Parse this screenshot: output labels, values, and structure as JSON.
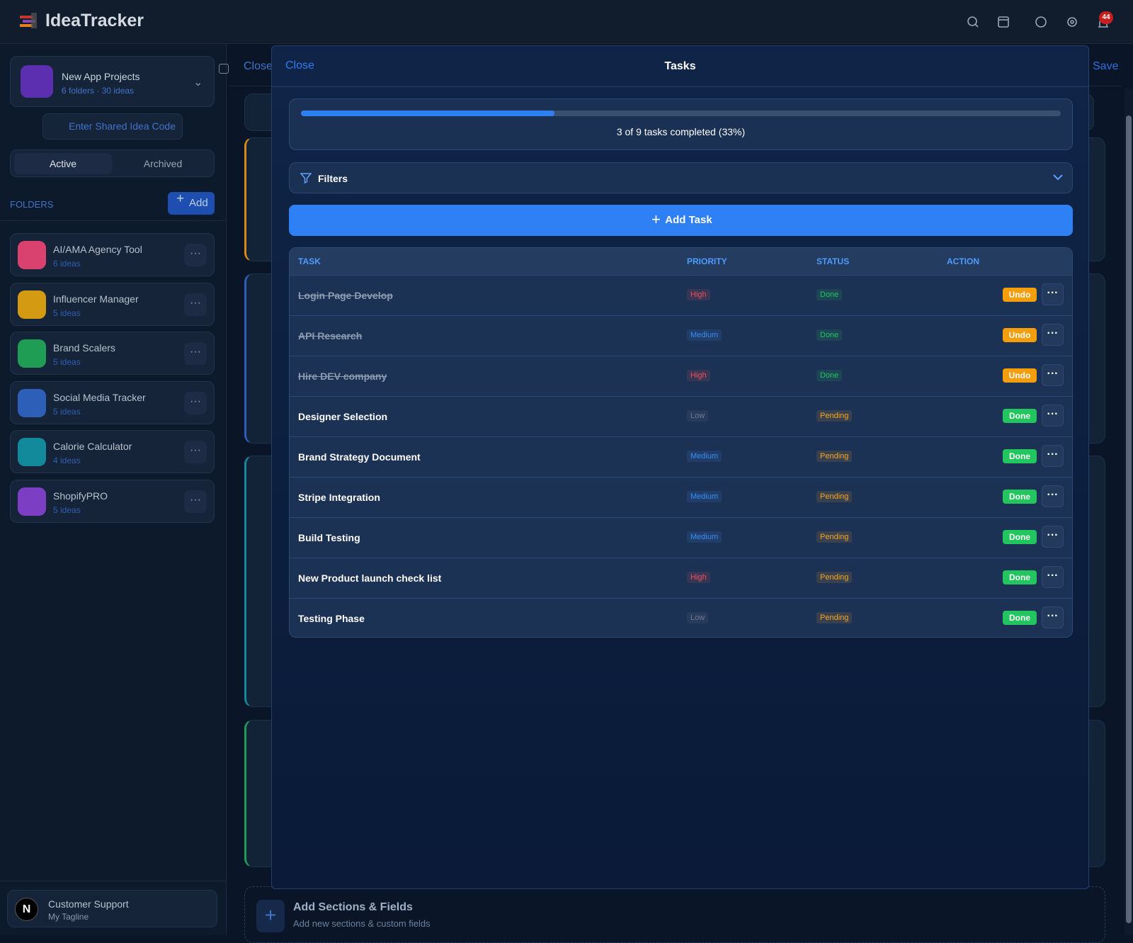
{
  "header": {
    "logo": "IdeaTracker",
    "notification_count": "44"
  },
  "sidebar": {
    "workspace": {
      "name": "New App Projects",
      "meta": "6 folders · 30 ideas"
    },
    "shared_code": "Enter Shared Idea Code",
    "tabs": [
      "Active",
      "Archived"
    ],
    "folders_label": "FOLDERS",
    "add": "Add",
    "folders": [
      {
        "name": "AI/AMA Agency Tool",
        "meta": "6 ideas",
        "color": "#d9416f"
      },
      {
        "name": "Influencer Manager",
        "meta": "5 ideas",
        "color": "#d39a12"
      },
      {
        "name": "Brand Scalers",
        "meta": "5 ideas",
        "color": "#1f9d55"
      },
      {
        "name": "Social Media Tracker",
        "meta": "5 ideas",
        "color": "#2d5fb8"
      },
      {
        "name": "Calorie Calculator",
        "meta": "4 ideas",
        "color": "#138a9c"
      },
      {
        "name": "ShopifyPRO",
        "meta": "5 ideas",
        "color": "#7c3fc4"
      }
    ],
    "footer": {
      "avatar": "N",
      "name": "Customer Support",
      "tagline": "My Tagline"
    }
  },
  "background": {
    "close": "Close",
    "save": "Save",
    "add_sections": {
      "title": "Add Sections & Fields",
      "subtitle": "Add new sections & custom fields"
    }
  },
  "modal": {
    "close": "Close",
    "title": "Tasks",
    "progress": {
      "completed": 3,
      "total": 9,
      "label": "3 of 9 tasks completed (33%)"
    },
    "filters": "Filters",
    "add_task": "Add Task",
    "columns": [
      "TASK",
      "PRIORITY",
      "STATUS",
      "ACTION"
    ],
    "colors": {
      "High": "#ef4f5a",
      "Medium": "#3b8cf0",
      "Low": "#6f7b8d",
      "Done": "#22c55e",
      "Pending": "#f5a524",
      "Undo": "#f59e0b"
    },
    "tasks": [
      {
        "name": "Login Page Develop",
        "priority": "High",
        "status": "Done",
        "action": "Undo",
        "strikethrough": true
      },
      {
        "name": "API Research",
        "priority": "Medium",
        "status": "Done",
        "action": "Undo",
        "strikethrough": true
      },
      {
        "name": "Hire DEV company",
        "priority": "High",
        "status": "Done",
        "action": "Undo",
        "strikethrough": true
      },
      {
        "name": "Designer Selection",
        "priority": "Low",
        "status": "Pending",
        "action": "Done",
        "strikethrough": false
      },
      {
        "name": "Brand Strategy Document",
        "priority": "Medium",
        "status": "Pending",
        "action": "Done",
        "strikethrough": false
      },
      {
        "name": "Stripe Integration",
        "priority": "Medium",
        "status": "Pending",
        "action": "Done",
        "strikethrough": false
      },
      {
        "name": "Build Testing",
        "priority": "Medium",
        "status": "Pending",
        "action": "Done",
        "strikethrough": false
      },
      {
        "name": "New Product launch check list",
        "priority": "High",
        "status": "Pending",
        "action": "Done",
        "strikethrough": false
      },
      {
        "name": "Testing Phase",
        "priority": "Low",
        "status": "Pending",
        "action": "Done",
        "strikethrough": false
      }
    ]
  }
}
